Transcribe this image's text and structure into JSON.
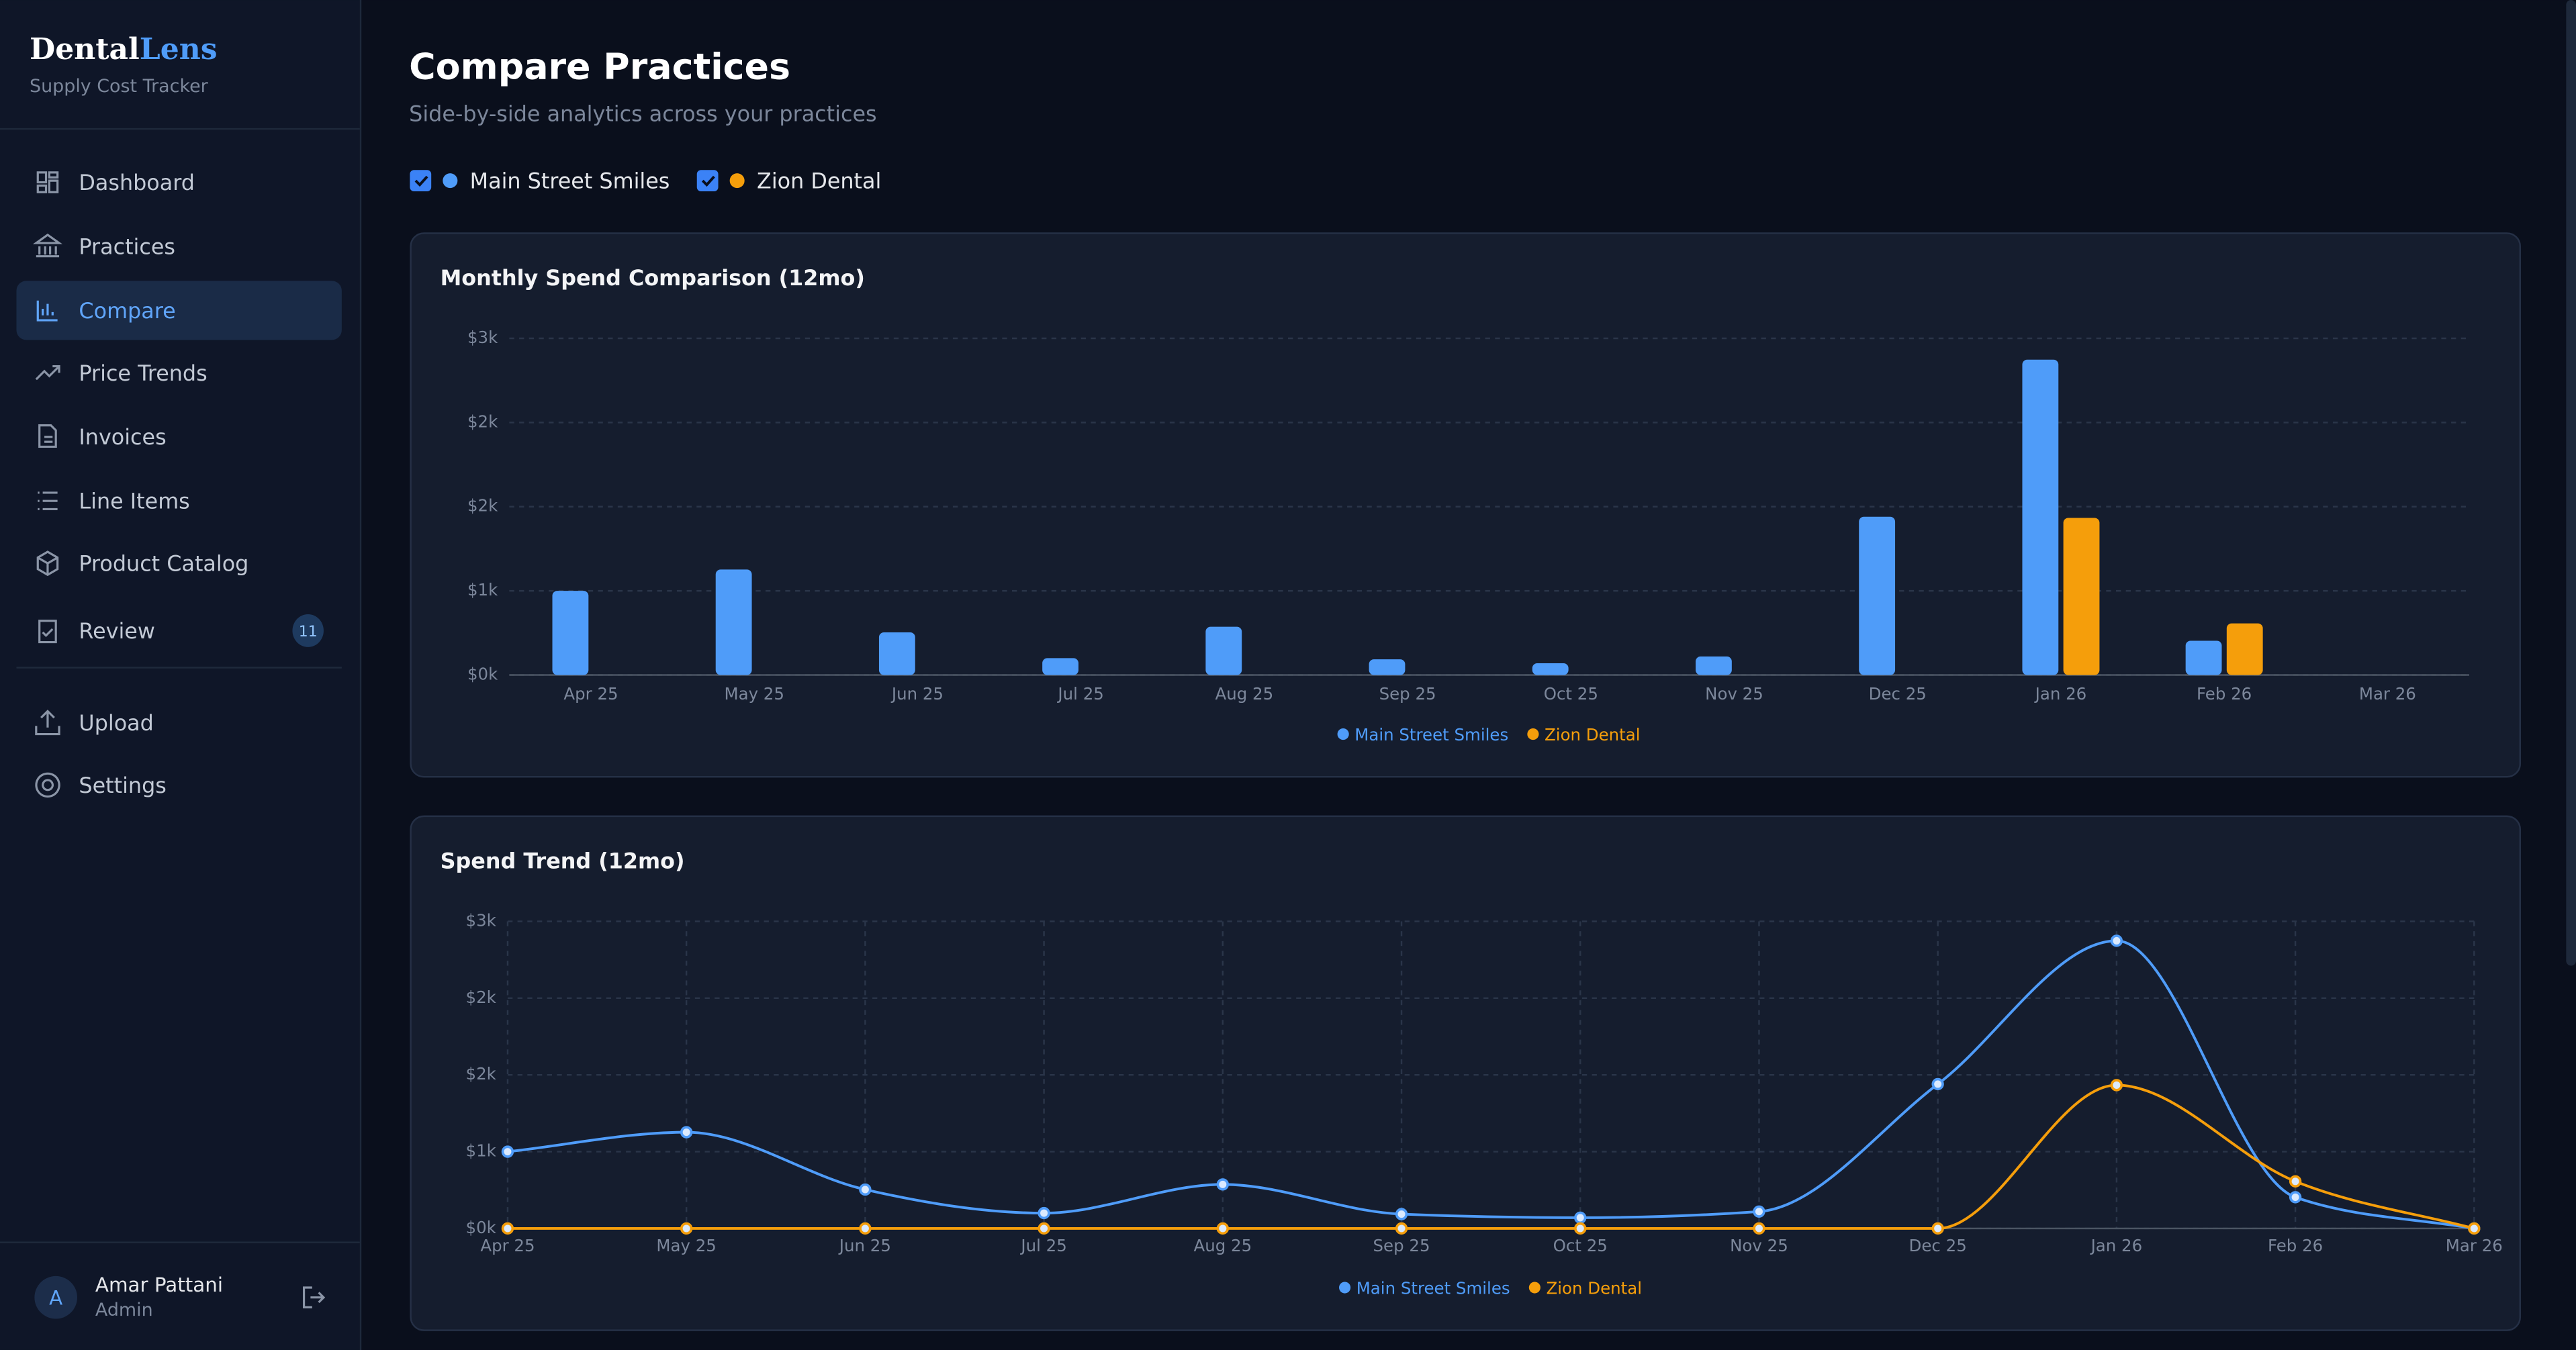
{
  "sidebar": {
    "brand": {
      "part1": "Dental",
      "part2": "Lens"
    },
    "tagline": "Supply Cost Tracker",
    "nav": [
      {
        "label": "Dashboard"
      },
      {
        "label": "Practices"
      },
      {
        "label": "Compare",
        "active": true
      },
      {
        "label": "Price Trends"
      },
      {
        "label": "Invoices"
      },
      {
        "label": "Line Items"
      },
      {
        "label": "Product Catalog"
      },
      {
        "label": "Review",
        "badge": 11
      }
    ],
    "nav_secondary": [
      {
        "label": "Upload"
      },
      {
        "label": "Settings"
      }
    ],
    "user": {
      "initial": "A",
      "name": "Amar Pattani",
      "role": "Admin"
    }
  },
  "header": {
    "title": "Compare Practices",
    "subtitle": "Side-by-side analytics across your practices"
  },
  "filters": [
    {
      "label": "Main Street Smiles",
      "checked": true,
      "color": "#4f9cf9"
    },
    {
      "label": "Zion Dental",
      "checked": true,
      "color": "#f59e0b"
    }
  ],
  "chart_data": [
    {
      "type": "bar",
      "title": "Monthly Spend Comparison (12mo)",
      "categories": [
        "Apr 25",
        "May 25",
        "Jun 25",
        "Jul 25",
        "Aug 25",
        "Sep 25",
        "Oct 25",
        "Nov 25",
        "Dec 25",
        "Jan 26",
        "Feb 26",
        "Mar 26"
      ],
      "series": [
        {
          "name": "Main Street Smiles",
          "color": "#4f9cf9",
          "values": [
            750,
            940,
            380,
            150,
            430,
            140,
            105,
            165,
            1410,
            2810,
            305,
            0
          ]
        },
        {
          "name": "Zion Dental",
          "color": "#f59e0b",
          "values": [
            0,
            0,
            0,
            0,
            0,
            0,
            0,
            0,
            0,
            1400,
            460,
            0
          ]
        }
      ],
      "ylim": [
        0,
        3000
      ],
      "yticks": [
        {
          "value": 0,
          "label": "$0k"
        },
        {
          "value": 750,
          "label": "$1k"
        },
        {
          "value": 1500,
          "label": "$2k"
        },
        {
          "value": 2250,
          "label": "$2k"
        },
        {
          "value": 3000,
          "label": "$3k"
        }
      ],
      "grid": true,
      "legend": "bottom"
    },
    {
      "type": "line",
      "title": "Spend Trend (12mo)",
      "categories": [
        "Apr 25",
        "May 25",
        "Jun 25",
        "Jul 25",
        "Aug 25",
        "Sep 25",
        "Oct 25",
        "Nov 25",
        "Dec 25",
        "Jan 26",
        "Feb 26",
        "Mar 26"
      ],
      "series": [
        {
          "name": "Main Street Smiles",
          "color": "#4f9cf9",
          "values": [
            750,
            940,
            380,
            150,
            430,
            140,
            105,
            165,
            1410,
            2810,
            305,
            0
          ]
        },
        {
          "name": "Zion Dental",
          "color": "#f59e0b",
          "values": [
            0,
            0,
            0,
            0,
            0,
            0,
            0,
            0,
            0,
            1400,
            460,
            0
          ]
        }
      ],
      "ylim": [
        0,
        3000
      ],
      "yticks": [
        {
          "value": 0,
          "label": "$0k"
        },
        {
          "value": 750,
          "label": "$1k"
        },
        {
          "value": 1500,
          "label": "$2k"
        },
        {
          "value": 2250,
          "label": "$2k"
        },
        {
          "value": 3000,
          "label": "$3k"
        }
      ],
      "grid": true,
      "legend": "bottom"
    }
  ]
}
